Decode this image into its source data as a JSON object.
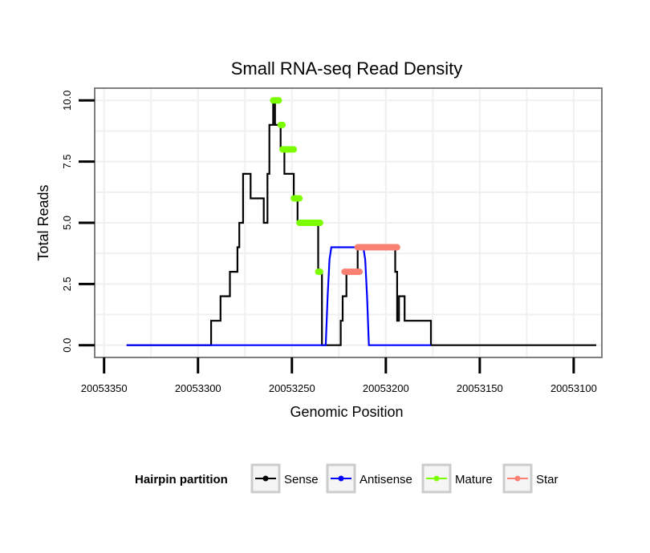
{
  "chart_data": {
    "type": "line",
    "title": "Small RNA-seq Read Density",
    "xlabel": "Genomic Position",
    "ylabel": "Total Reads",
    "xlim": [
      20053355,
      20053085
    ],
    "ylim": [
      -0.5,
      10.5
    ],
    "x_reversed": true,
    "xticks": [
      20053350,
      20053300,
      20053250,
      20053200,
      20053150,
      20053100
    ],
    "xtick_labels": [
      "20053350",
      "20053300",
      "20053250",
      "20053200",
      "20053150",
      "20053100"
    ],
    "yticks": [
      0,
      2.5,
      5,
      7.5,
      10
    ],
    "ytick_labels": [
      "0.0",
      "2.5",
      "5.0",
      "7.5",
      "10.0"
    ],
    "grid": true,
    "legend": {
      "title": "Hairpin partition",
      "position": "bottom",
      "entries": [
        {
          "name": "Sense",
          "color": "#000000"
        },
        {
          "name": "Antisense",
          "color": "#0000ff"
        },
        {
          "name": "Mature",
          "color": "#7cfc00"
        },
        {
          "name": "Star",
          "color": "#fa8072"
        }
      ]
    },
    "series": [
      {
        "name": "Sense",
        "kind": "line",
        "color": "#000000",
        "x": [
          20053338,
          20053293,
          20053293,
          20053288,
          20053288,
          20053283,
          20053283,
          20053279,
          20053279,
          20053278,
          20053278,
          20053276,
          20053276,
          20053272,
          20053272,
          20053266,
          20053266,
          20053265,
          20053265,
          20053263,
          20053263,
          20053262,
          20053262,
          20053260,
          20053260,
          20053259,
          20053259,
          20053256,
          20053256,
          20053254,
          20053254,
          20053249,
          20053249,
          20053247,
          20053247,
          20053245,
          20053245,
          20053236,
          20053236,
          20053234,
          20053234,
          20053224,
          20053224,
          20053223,
          20053223,
          20053221,
          20053221,
          20053215,
          20053215,
          20053214,
          20053214,
          20053195,
          20053195,
          20053194,
          20053194,
          20053193,
          20053193,
          20053190,
          20053190,
          20053189,
          20053189,
          20053176,
          20053176,
          20053088
        ],
        "y": [
          0,
          0,
          1,
          1,
          2,
          2,
          3,
          3,
          4,
          4,
          5,
          5,
          7,
          7,
          6,
          6,
          6,
          6,
          5,
          5,
          7,
          7,
          9,
          9,
          10,
          10,
          9,
          9,
          8,
          8,
          7,
          7,
          6,
          6,
          5,
          5,
          5,
          5,
          3,
          3,
          0,
          0,
          1,
          1,
          2,
          2,
          3,
          3,
          4,
          4,
          4,
          4,
          3,
          3,
          1,
          1,
          2,
          2,
          1,
          1,
          1,
          1,
          0,
          0
        ]
      },
      {
        "name": "Antisense",
        "kind": "line",
        "color": "#0000ff",
        "x": [
          20053338,
          20053232,
          20053231,
          20053230,
          20053229,
          20053212,
          20053211,
          20053210,
          20053209,
          20053176
        ],
        "y": [
          0,
          0,
          2,
          3.5,
          4,
          4,
          3.5,
          2,
          0,
          0
        ]
      },
      {
        "name": "Mature",
        "kind": "segments",
        "color": "#7cfc00",
        "segments": [
          {
            "x": [
              20053260,
              20053257
            ],
            "y": 10
          },
          {
            "x": [
              20053256,
              20053255
            ],
            "y": 9
          },
          {
            "x": [
              20053255,
              20053249
            ],
            "y": 8
          },
          {
            "x": [
              20053249,
              20053246
            ],
            "y": 6
          },
          {
            "x": [
              20053246,
              20053235
            ],
            "y": 5
          },
          {
            "x": [
              20053236,
              20053235
            ],
            "y": 3
          }
        ]
      },
      {
        "name": "Star",
        "kind": "segments",
        "color": "#fa8072",
        "segments": [
          {
            "x": [
              20053222,
              20053214
            ],
            "y": 3
          },
          {
            "x": [
              20053215,
              20053194
            ],
            "y": 4
          }
        ]
      }
    ]
  }
}
